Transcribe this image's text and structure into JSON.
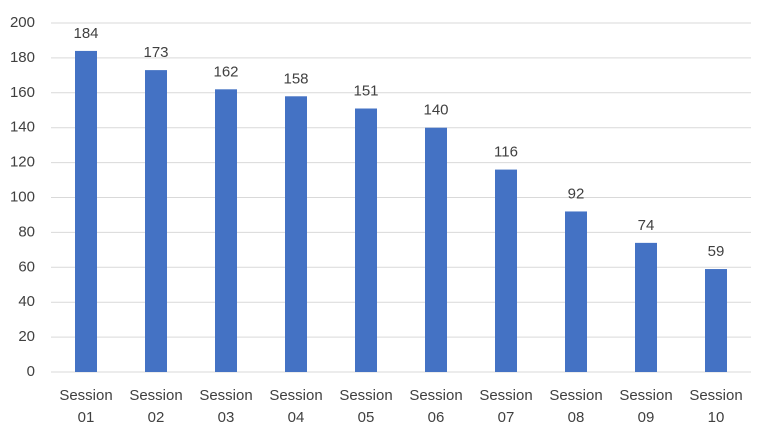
{
  "chart_data": {
    "type": "bar",
    "categories": [
      "Session 01",
      "Session 02",
      "Session 03",
      "Session 04",
      "Session 05",
      "Session 06",
      "Session 07",
      "Session 08",
      "Session 09",
      "Session 10"
    ],
    "values": [
      184,
      173,
      162,
      158,
      151,
      140,
      116,
      92,
      74,
      59
    ],
    "color": "#4472c4",
    "ylim": [
      0,
      200
    ],
    "yticks": [
      0,
      20,
      40,
      60,
      80,
      100,
      120,
      140,
      160,
      180,
      200
    ],
    "grid": true
  }
}
